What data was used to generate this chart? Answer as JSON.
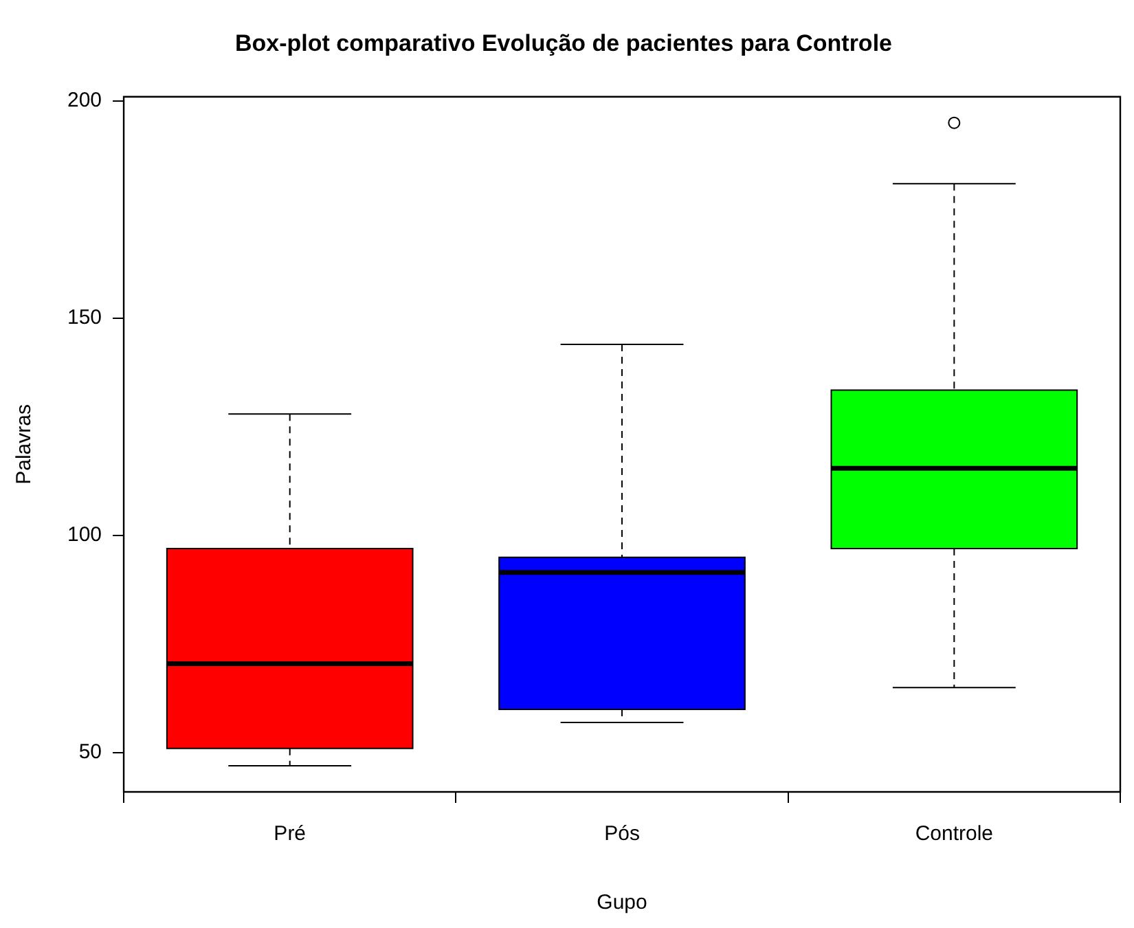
{
  "chart_data": {
    "type": "box",
    "title": "Box-plot comparativo Evolução de pacientes para Controle",
    "xlabel": "Gupo",
    "ylabel": "Palavras",
    "categories": [
      "Pré",
      "Pós",
      "Controle"
    ],
    "colors": [
      "#ff0000",
      "#0000ff",
      "#00ff00"
    ],
    "boxes": [
      {
        "low": 47,
        "q1": 51,
        "median": 70.5,
        "q3": 97,
        "high": 128
      },
      {
        "low": 57,
        "q1": 60,
        "median": 91.5,
        "q3": 95,
        "high": 144
      },
      {
        "low": 65,
        "q1": 97,
        "median": 115.5,
        "q3": 133.5,
        "high": 181,
        "outliers": [
          195
        ]
      }
    ],
    "ylim": [
      41,
      201
    ],
    "yticks": [
      50,
      100,
      150,
      200
    ],
    "grid": false,
    "legend": false
  }
}
